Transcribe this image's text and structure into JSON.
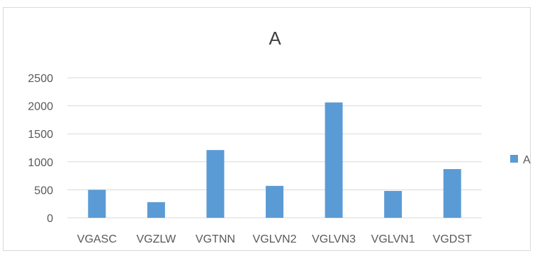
{
  "chart_data": {
    "type": "bar",
    "title": "A",
    "categories": [
      "VGASC",
      "VGZLW",
      "VGTNN",
      "VGLVN2",
      "VGLVN3",
      "VGLVN1",
      "VGDST"
    ],
    "series": [
      {
        "name": "A",
        "values": [
          500,
          280,
          1210,
          570,
          2060,
          480,
          870
        ],
        "color": "#5b9bd5"
      }
    ],
    "ylim": [
      0,
      2500
    ],
    "yticks": [
      "0",
      "500",
      "1000",
      "1500",
      "2000",
      "2500"
    ],
    "xlabel": "",
    "ylabel": "",
    "grid": true,
    "legend": {
      "position": "right",
      "entries": [
        "A"
      ]
    }
  }
}
